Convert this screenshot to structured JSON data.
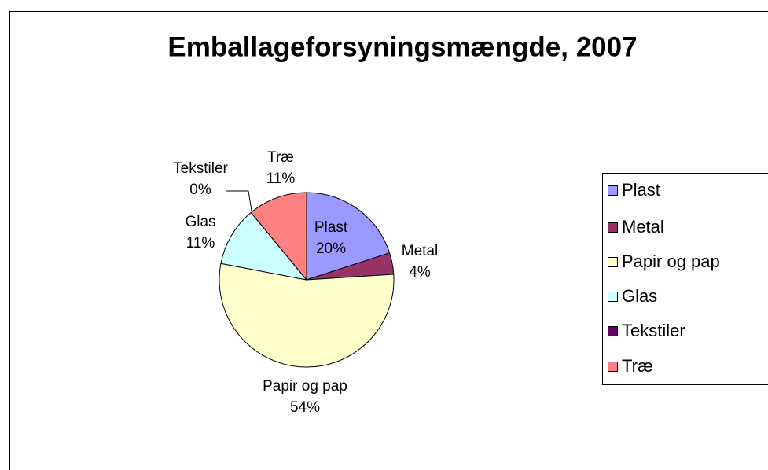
{
  "chart_data": {
    "type": "pie",
    "title": "Emballageforsyningsmængde, 2007",
    "categories": [
      "Plast",
      "Metal",
      "Papir og pap",
      "Glas",
      "Tekstiler",
      "Træ"
    ],
    "values": [
      20,
      4,
      54,
      11,
      0,
      11
    ],
    "value_labels": [
      "20%",
      "4%",
      "54%",
      "11%",
      "0%",
      "11%"
    ],
    "colors": [
      "#9999ff",
      "#993366",
      "#ffffcc",
      "#ccffff",
      "#660066",
      "#ff8080"
    ],
    "legend": "right"
  }
}
